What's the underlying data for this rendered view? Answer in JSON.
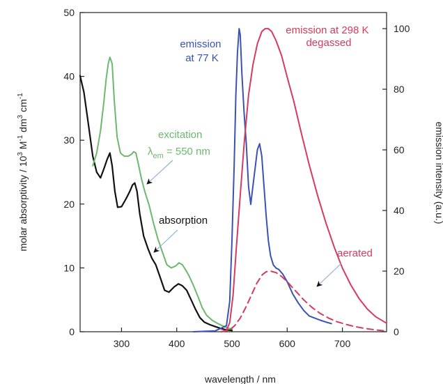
{
  "chart_data": {
    "type": "line",
    "xlabel": "wavelength / nm",
    "ylabel_left_parts": [
      "molar absorptivity / 10",
      "3",
      " M",
      "-1",
      " dm",
      "3",
      " cm",
      "-1"
    ],
    "ylabel_right": "emission intensity (a.u.)",
    "xlim": [
      225,
      780
    ],
    "ylim_left": [
      0,
      50
    ],
    "ylim_right": [
      0,
      105.3
    ],
    "x_ticks": [
      300,
      400,
      500,
      600,
      700
    ],
    "y_ticks_left": [
      0,
      10,
      20,
      30,
      40,
      50
    ],
    "y_ticks_right": [
      0,
      20,
      40,
      60,
      80,
      100
    ],
    "colors": {
      "absorption": "#111111",
      "excitation": "#6cb86c",
      "emission_77K": "#3a52b4",
      "emission_298K": "#d63a5c"
    },
    "series": [
      {
        "key": "absorption",
        "axis": "left",
        "style": "solid",
        "x": [
          225,
          232,
          240,
          248,
          255,
          262,
          268,
          274,
          279,
          283,
          288,
          293,
          300,
          308,
          315,
          320,
          324,
          328,
          333,
          340,
          348,
          355,
          362,
          370,
          378,
          386,
          395,
          403,
          410,
          418,
          426,
          434,
          442,
          450,
          460,
          470,
          480,
          490,
          500
        ],
        "values": [
          40.1,
          37.5,
          32.5,
          27.5,
          25,
          24.1,
          25.5,
          27,
          28,
          26,
          22,
          19.5,
          19.6,
          20.8,
          22,
          23,
          23.3,
          22,
          18.5,
          15,
          13,
          11.5,
          10.5,
          8.5,
          6.5,
          6.2,
          7,
          7.5,
          7.2,
          6.5,
          5,
          3.5,
          2.2,
          1.5,
          1.1,
          0.8,
          0.5,
          0.3,
          0.2
        ]
      },
      {
        "key": "excitation",
        "axis": "left",
        "style": "solid",
        "x": [
          248,
          255,
          262,
          268,
          272,
          276,
          279,
          283,
          287,
          292,
          298,
          305,
          312,
          318,
          322,
          326,
          330,
          336,
          342,
          350,
          358,
          366,
          374,
          382,
          390,
          398,
          404,
          410,
          416,
          422,
          430,
          438,
          446,
          454,
          464,
          474,
          484,
          492,
          500
        ],
        "values": [
          26,
          28,
          31.5,
          36,
          39.5,
          42,
          43,
          42,
          36,
          30.5,
          28,
          27.5,
          27.5,
          27.8,
          28.2,
          28,
          26.5,
          24,
          22,
          19.8,
          17,
          14.5,
          12.5,
          10.5,
          10,
          10.3,
          10.8,
          10.5,
          9.7,
          8.8,
          7.3,
          5.6,
          3.8,
          2.6,
          1.8,
          1.3,
          0.9,
          0.6,
          0.4
        ]
      },
      {
        "key": "emission_77K",
        "axis": "right",
        "style": "solid",
        "x": [
          430,
          470,
          490,
          496,
          500,
          504,
          507,
          510,
          513,
          515,
          518,
          522,
          526,
          530,
          534,
          538,
          542,
          546,
          550,
          554,
          558,
          562,
          566,
          570,
          575,
          580,
          585,
          592,
          600,
          610,
          620,
          630,
          640,
          650,
          660,
          670,
          680
        ],
        "values": [
          0,
          0.3,
          2,
          10,
          30,
          55,
          78,
          92,
          100,
          98,
          85,
          72,
          62,
          48,
          42,
          48,
          54,
          60,
          62,
          58,
          48,
          38,
          30,
          25,
          22,
          21,
          20.5,
          19,
          16.5,
          12.5,
          9.5,
          7,
          5.2,
          4.5,
          3.8,
          3.2,
          2.7
        ]
      },
      {
        "key": "emission_298K",
        "axis": "right",
        "style": "solid",
        "x": [
          480,
          490,
          496,
          502,
          508,
          515,
          522,
          530,
          538,
          546,
          554,
          560,
          566,
          572,
          580,
          590,
          600,
          612,
          625,
          640,
          655,
          670,
          685,
          700,
          715,
          730,
          745,
          760,
          780
        ],
        "values": [
          0,
          0.5,
          3,
          12,
          28,
          45,
          62,
          78,
          88,
          95,
          99,
          100,
          100,
          99,
          96,
          91,
          84,
          76,
          66,
          55,
          45,
          36,
          28,
          21,
          15.5,
          11,
          7.5,
          5,
          2.8
        ]
      },
      {
        "key": "emission_298K_aerated",
        "axis": "right",
        "style": "dashed",
        "x": [
          480,
          495,
          505,
          515,
          525,
          535,
          545,
          555,
          562,
          570,
          580,
          590,
          600,
          615,
          630,
          645,
          660,
          675,
          690,
          705,
          720,
          740,
          760,
          780
        ],
        "values": [
          0,
          0.5,
          2,
          4.5,
          8,
          12,
          16,
          18.8,
          19.8,
          20,
          19.5,
          18.2,
          16.5,
          13.5,
          10.5,
          8,
          6,
          4.5,
          3.3,
          2.5,
          1.8,
          1.1,
          0.6,
          0.2
        ]
      }
    ],
    "annotations": {
      "emission_77K": [
        "emission",
        "at 77 K"
      ],
      "emission_298K": [
        "emission at 298 K",
        "degassed"
      ],
      "excitation": [
        "excitation"
      ],
      "excitation_lambda": {
        "symbol": "λ",
        "subscript": "em",
        "rest": " = 550 nm"
      },
      "absorption": "absorption",
      "aerated": "aerated"
    }
  }
}
